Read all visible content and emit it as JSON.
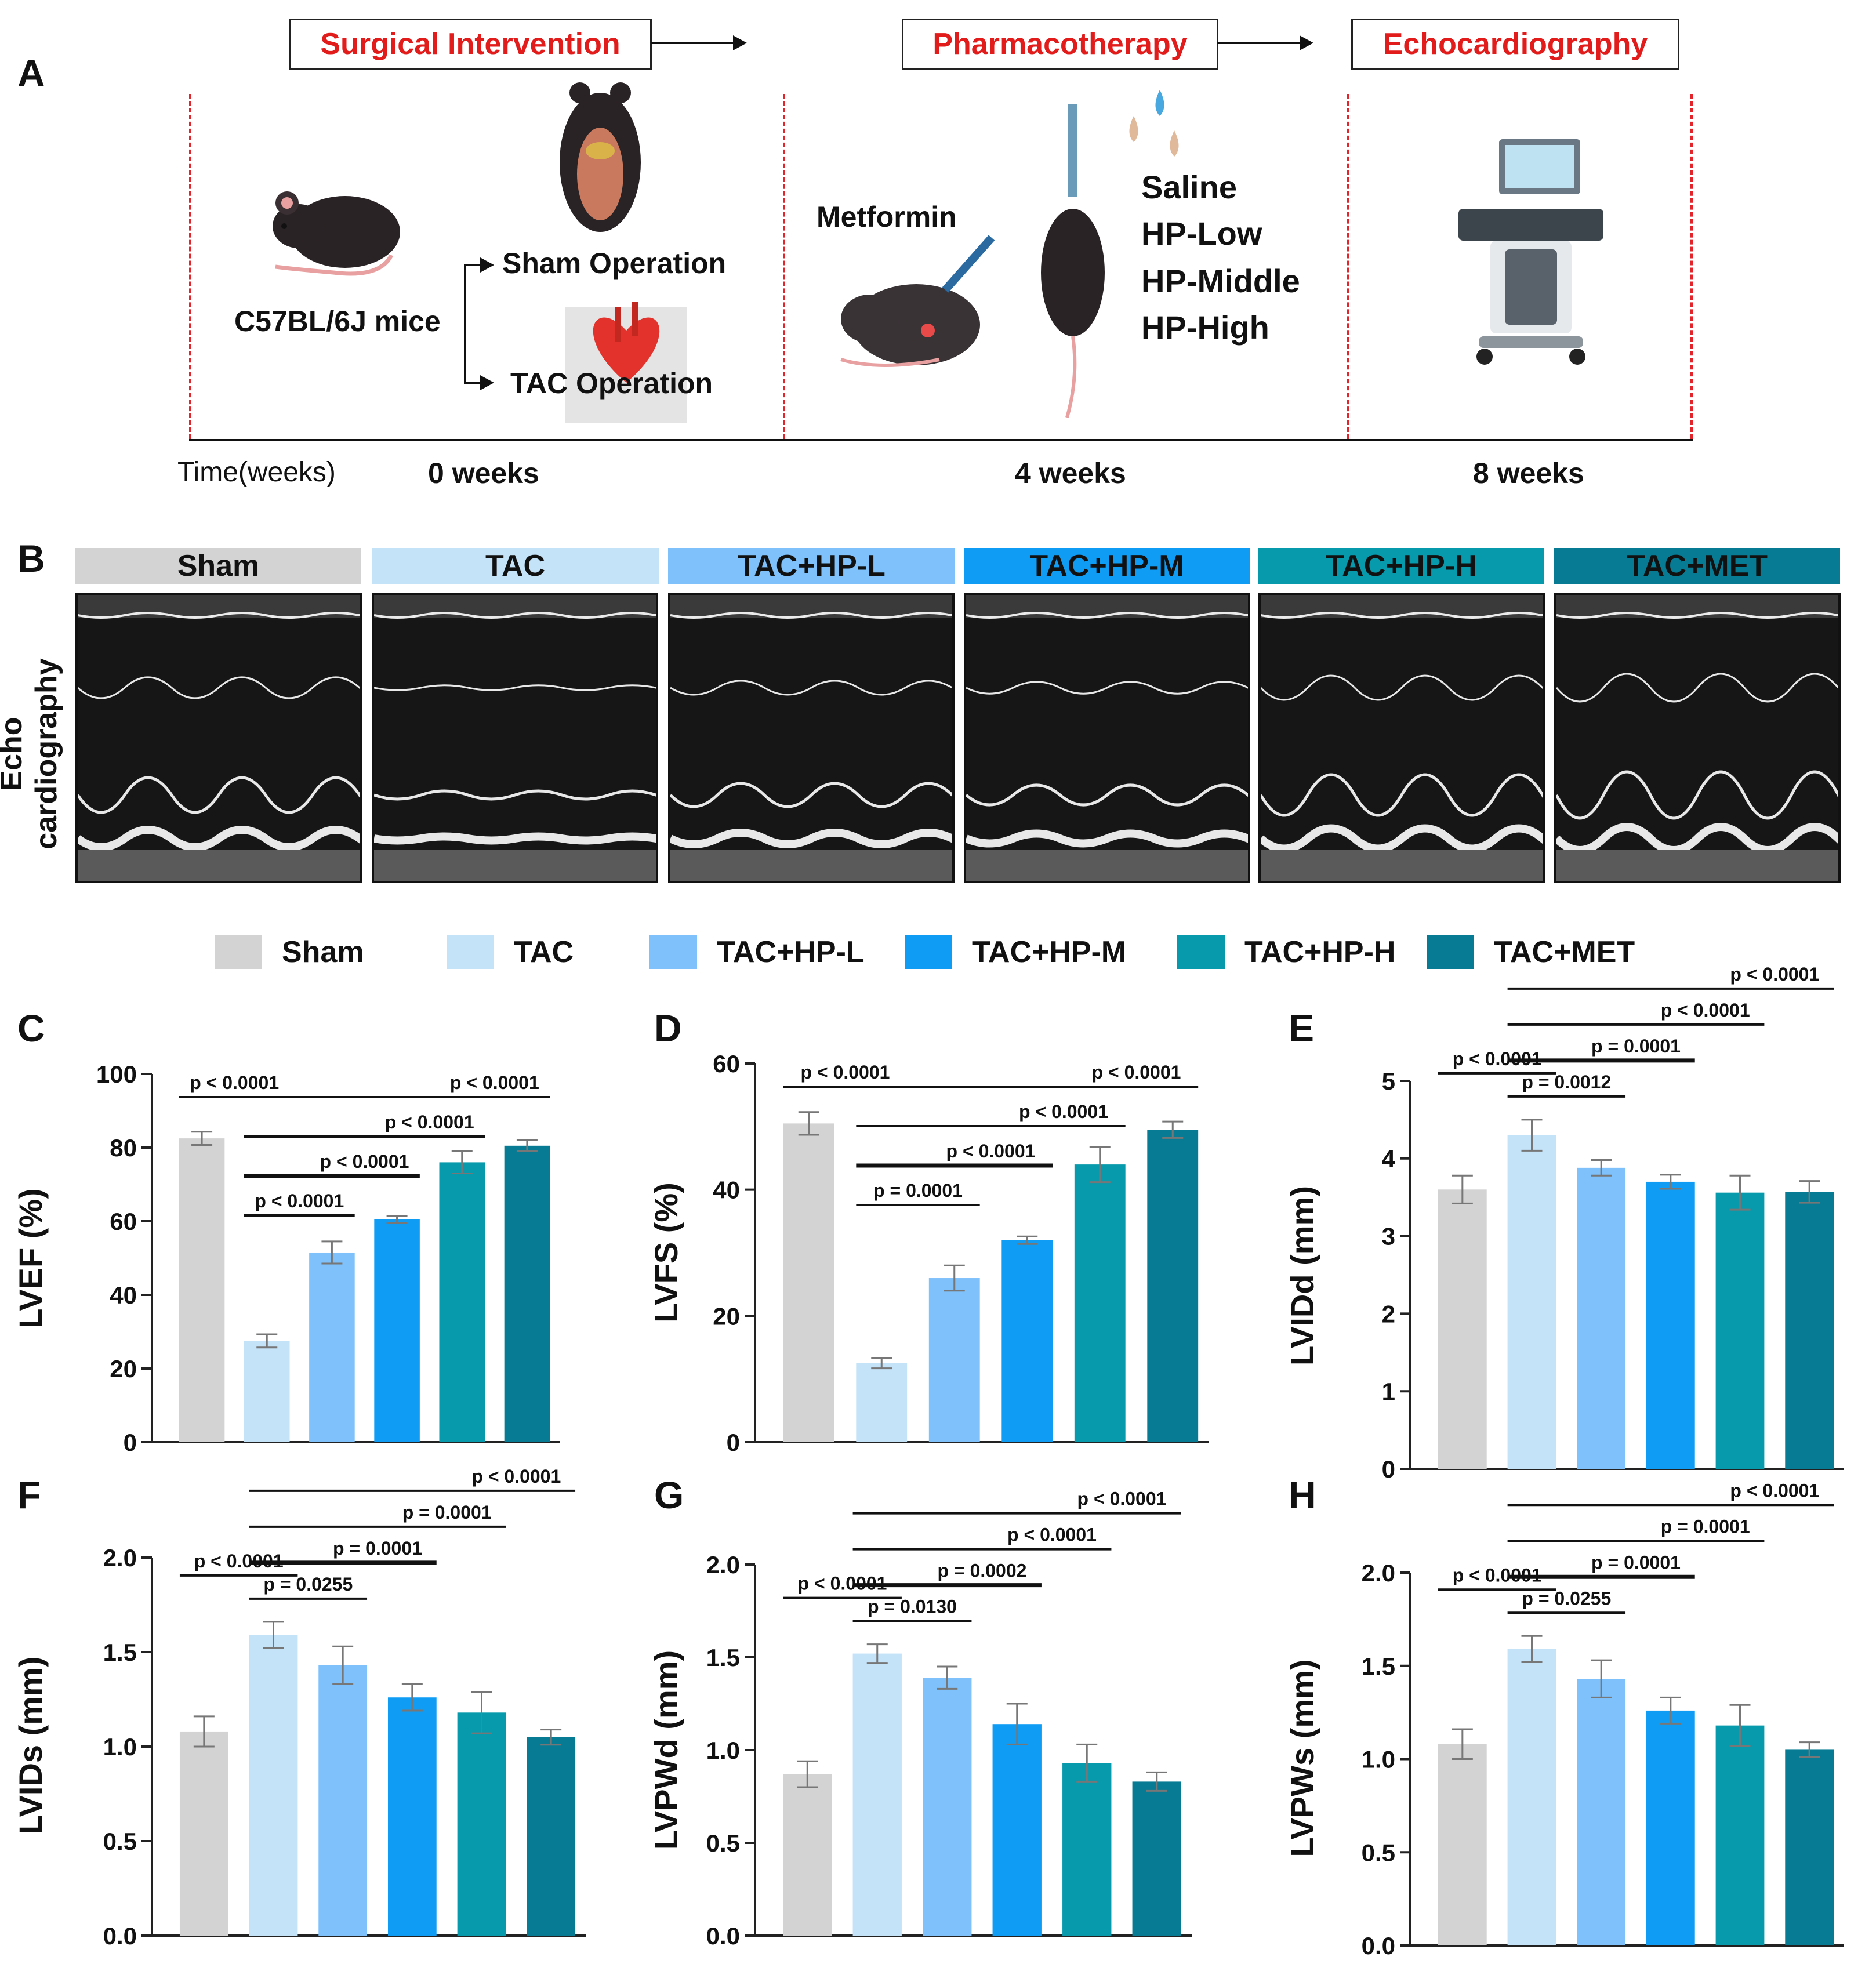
{
  "panel_labels": [
    "A",
    "B",
    "C",
    "D",
    "E",
    "F",
    "G",
    "H"
  ],
  "panel_a": {
    "steps": [
      "Surgical Intervention",
      "Pharmacotherapy",
      "Echocardiography"
    ],
    "mouse_strain": "C57BL/6J mice",
    "operations": [
      "Sham Operation",
      "TAC Operation"
    ],
    "drug": "Metformin",
    "treatments": [
      "Saline",
      "HP-Low",
      "HP-Middle",
      "HP-High"
    ],
    "time_label": "Time(weeks)",
    "timepoints": [
      "0 weeks",
      "4 weeks",
      "8 weeks"
    ]
  },
  "panel_b": {
    "ylabel": "Echo cardiography",
    "groups": [
      "Sham",
      "TAC",
      "TAC+HP-L",
      "TAC+HP-M",
      "TAC+HP-H",
      "TAC+MET"
    ]
  },
  "legend": {
    "groups": [
      "Sham",
      "TAC",
      "TAC+HP-L",
      "TAC+HP-M",
      "TAC+HP-H",
      "TAC+MET"
    ]
  },
  "colors": {
    "groups": [
      "#d3d3d3",
      "#c4e2f8",
      "#7fc1fb",
      "#0f9cf5",
      "#0799ac",
      "#077b93"
    ],
    "step_text": "#e21b1b",
    "dashed_line": "#e3242b",
    "error_bar": "#777777"
  },
  "chart_data": [
    {
      "panel": "C",
      "type": "bar",
      "categories": [
        "Sham",
        "TAC",
        "TAC+HP-L",
        "TAC+HP-M",
        "TAC+HP-H",
        "TAC+MET"
      ],
      "values": [
        82.5,
        27.5,
        51.5,
        60.5,
        76,
        80.5
      ],
      "errors": [
        1.8,
        1.8,
        3,
        1,
        3,
        1.5
      ],
      "ylabel": "LVEF (%)",
      "ylim": [
        0,
        100
      ],
      "yticks": [
        0,
        20,
        40,
        60,
        80,
        100
      ],
      "comparisons": [
        {
          "from": 0,
          "to": 1,
          "label": "p < 0.0001",
          "level": 0
        },
        {
          "from": 1,
          "to": 2,
          "label": "p < 0.0001",
          "level": 0
        },
        {
          "from": 1,
          "to": 3,
          "label": "p < 0.0001",
          "level": 1
        },
        {
          "from": 1,
          "to": 4,
          "label": "p < 0.0001",
          "level": 2
        },
        {
          "from": 1,
          "to": 5,
          "label": "p < 0.0001",
          "level": 3
        }
      ]
    },
    {
      "panel": "D",
      "type": "bar",
      "categories": [
        "Sham",
        "TAC",
        "TAC+HP-L",
        "TAC+HP-M",
        "TAC+HP-H",
        "TAC+MET"
      ],
      "values": [
        50.5,
        12.5,
        26,
        32,
        44,
        49.5
      ],
      "errors": [
        1.8,
        0.8,
        2,
        0.6,
        2.8,
        1.3
      ],
      "ylabel": "LVFS (%)",
      "ylim": [
        0,
        60
      ],
      "yticks": [
        0,
        20,
        40,
        60
      ],
      "comparisons": [
        {
          "from": 0,
          "to": 1,
          "label": "p < 0.0001",
          "level": 0
        },
        {
          "from": 1,
          "to": 2,
          "label": "p = 0.0001",
          "level": 0
        },
        {
          "from": 1,
          "to": 3,
          "label": "p < 0.0001",
          "level": 1
        },
        {
          "from": 1,
          "to": 4,
          "label": "p < 0.0001",
          "level": 2
        },
        {
          "from": 1,
          "to": 5,
          "label": "p < 0.0001",
          "level": 3
        }
      ]
    },
    {
      "panel": "E",
      "type": "bar",
      "categories": [
        "Sham",
        "TAC",
        "TAC+HP-L",
        "TAC+HP-M",
        "TAC+HP-H",
        "TAC+MET"
      ],
      "values": [
        3.6,
        4.3,
        3.88,
        3.7,
        3.56,
        3.57
      ],
      "errors": [
        0.18,
        0.2,
        0.1,
        0.09,
        0.22,
        0.14
      ],
      "ylabel": "LVIDd (mm)",
      "ylim": [
        0,
        5
      ],
      "yticks": [
        0,
        1,
        2,
        3,
        4,
        5
      ],
      "comparisons": [
        {
          "from": 0,
          "to": 1,
          "label": "p < 0.0001",
          "level": 0
        },
        {
          "from": 1,
          "to": 2,
          "label": "p = 0.0012",
          "level": 0
        },
        {
          "from": 1,
          "to": 3,
          "label": "p = 0.0001",
          "level": 1
        },
        {
          "from": 1,
          "to": 4,
          "label": "p < 0.0001",
          "level": 2
        },
        {
          "from": 1,
          "to": 5,
          "label": "p < 0.0001",
          "level": 3
        }
      ]
    },
    {
      "panel": "F",
      "type": "bar",
      "categories": [
        "Sham",
        "TAC",
        "TAC+HP-L",
        "TAC+HP-M",
        "TAC+HP-H",
        "TAC+MET"
      ],
      "values": [
        1.08,
        1.59,
        1.43,
        1.26,
        1.18,
        1.05
      ],
      "errors": [
        0.08,
        0.07,
        0.1,
        0.07,
        0.11,
        0.04
      ],
      "ylabel": "LVIDs (mm)",
      "ylim": [
        0,
        2
      ],
      "yticks": [
        0,
        0.5,
        1,
        1.5,
        2
      ],
      "comparisons": [
        {
          "from": 0,
          "to": 1,
          "label": "p < 0.0001",
          "level": 0
        },
        {
          "from": 1,
          "to": 2,
          "label": "p = 0.0255",
          "level": 0
        },
        {
          "from": 1,
          "to": 3,
          "label": "p = 0.0001",
          "level": 1
        },
        {
          "from": 1,
          "to": 4,
          "label": "p = 0.0001",
          "level": 2
        },
        {
          "from": 1,
          "to": 5,
          "label": "p < 0.0001",
          "level": 3
        }
      ]
    },
    {
      "panel": "G",
      "type": "bar",
      "categories": [
        "Sham",
        "TAC",
        "TAC+HP-L",
        "TAC+HP-M",
        "TAC+HP-H",
        "TAC+MET"
      ],
      "values": [
        0.87,
        1.52,
        1.39,
        1.14,
        0.93,
        0.83
      ],
      "errors": [
        0.07,
        0.05,
        0.06,
        0.11,
        0.1,
        0.05
      ],
      "ylabel": "LVPWd (mm)",
      "ylim": [
        0,
        2
      ],
      "yticks": [
        0,
        0.5,
        1,
        1.5,
        2
      ],
      "comparisons": [
        {
          "from": 0,
          "to": 1,
          "label": "p < 0.0001",
          "level": 0
        },
        {
          "from": 1,
          "to": 2,
          "label": "p = 0.0130",
          "level": 0
        },
        {
          "from": 1,
          "to": 3,
          "label": "p = 0.0002",
          "level": 1
        },
        {
          "from": 1,
          "to": 4,
          "label": "p < 0.0001",
          "level": 2
        },
        {
          "from": 1,
          "to": 5,
          "label": "p < 0.0001",
          "level": 3
        }
      ]
    },
    {
      "panel": "H",
      "type": "bar",
      "categories": [
        "Sham",
        "TAC",
        "TAC+HP-L",
        "TAC+HP-M",
        "TAC+HP-H",
        "TAC+MET"
      ],
      "values": [
        1.08,
        1.59,
        1.43,
        1.26,
        1.18,
        1.05
      ],
      "errors": [
        0.08,
        0.07,
        0.1,
        0.07,
        0.11,
        0.04
      ],
      "ylabel": "LVPWs (mm)",
      "ylim": [
        0,
        2
      ],
      "yticks": [
        0,
        0.5,
        1,
        1.5,
        2
      ],
      "comparisons": [
        {
          "from": 0,
          "to": 1,
          "label": "p < 0.0001",
          "level": 0
        },
        {
          "from": 1,
          "to": 2,
          "label": "p = 0.0255",
          "level": 0
        },
        {
          "from": 1,
          "to": 3,
          "label": "p = 0.0001",
          "level": 1
        },
        {
          "from": 1,
          "to": 4,
          "label": "p = 0.0001",
          "level": 2
        },
        {
          "from": 1,
          "to": 5,
          "label": "p < 0.0001",
          "level": 3
        }
      ]
    }
  ]
}
